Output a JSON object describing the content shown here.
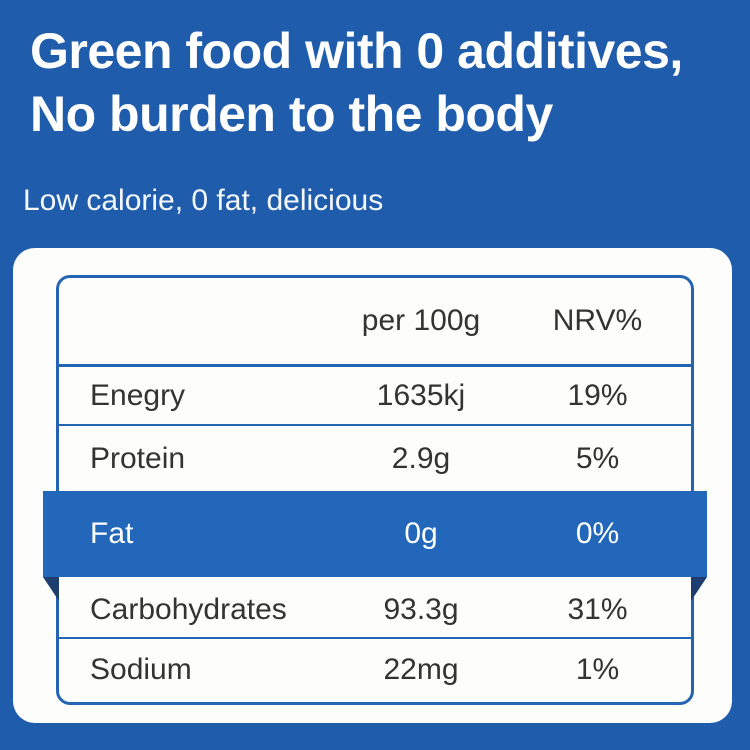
{
  "header": {
    "title_line1": "Green food with 0 additives,",
    "title_line2": "No burden to the body",
    "subtitle": "Low calorie, 0 fat, delicious"
  },
  "table": {
    "columns": {
      "col2": "per 100g",
      "col3": "NRV%"
    },
    "rows": [
      {
        "label": "Enegry",
        "per100g": "1635kj",
        "nrv": "19%",
        "highlighted": false
      },
      {
        "label": "Protein",
        "per100g": "2.9g",
        "nrv": "5%",
        "highlighted": false
      },
      {
        "label": "Fat",
        "per100g": "0g",
        "nrv": "0%",
        "highlighted": true
      },
      {
        "label": "Carbohydrates",
        "per100g": "93.3g",
        "nrv": "31%",
        "highlighted": false
      },
      {
        "label": "Sodium",
        "per100g": "22mg",
        "nrv": "1%",
        "highlighted": false
      }
    ]
  },
  "colors": {
    "background": "#1f5dac",
    "card": "#fdfdfc",
    "table_border": "#2465b3",
    "ribbon": "#2267b9",
    "ribbon_fold": "#1c3d6e",
    "text_dark": "#333333",
    "text_light": "#ffffff"
  }
}
